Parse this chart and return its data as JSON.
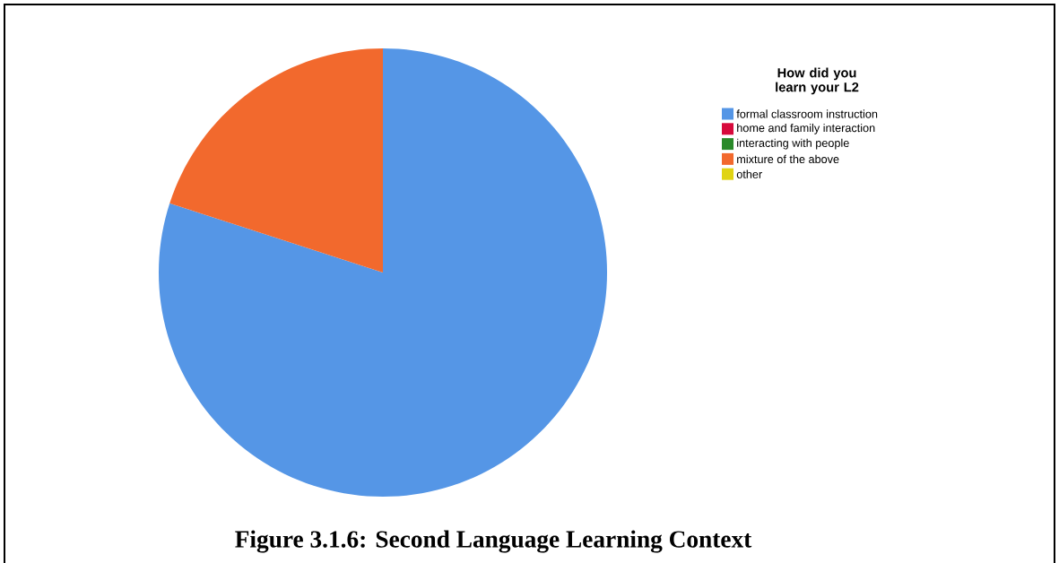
{
  "chart_data": {
    "type": "pie",
    "legend_title": "How did you learn your L2",
    "categories": [
      "formal classroom instruction",
      "home and family interaction",
      "interacting with people",
      "mixture of the above",
      "other"
    ],
    "values": [
      80,
      0,
      0,
      20,
      0
    ],
    "colors": [
      "#5596e6",
      "#d70a3c",
      "#2a8a2a",
      "#f2692d",
      "#e0d414"
    ],
    "legend": "top right",
    "annotations": [
      "Figure 3.1.6: Second Language Learning Context"
    ]
  }
}
